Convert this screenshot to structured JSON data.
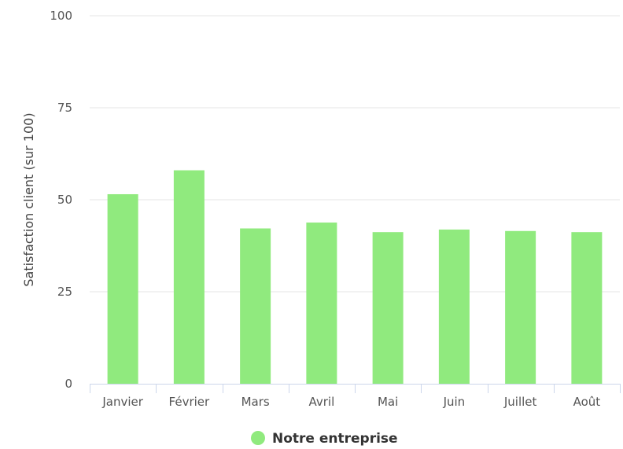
{
  "chart_data": {
    "type": "bar",
    "ylabel": "Satisfaction client (sur 100)",
    "ylim": [
      0,
      100
    ],
    "yticks": [
      0,
      25,
      50,
      75,
      100
    ],
    "categories": [
      "Janvier",
      "Février",
      "Mars",
      "Avril",
      "Mai",
      "Juin",
      "Juillet",
      "Août"
    ],
    "series": [
      {
        "name": "Notre entreprise",
        "color": "#90ea7e",
        "values": [
          51.5,
          58.0,
          42.2,
          43.8,
          41.2,
          41.9,
          41.5,
          41.2
        ]
      }
    ],
    "grid": true,
    "legend_position": "bottom-center"
  }
}
